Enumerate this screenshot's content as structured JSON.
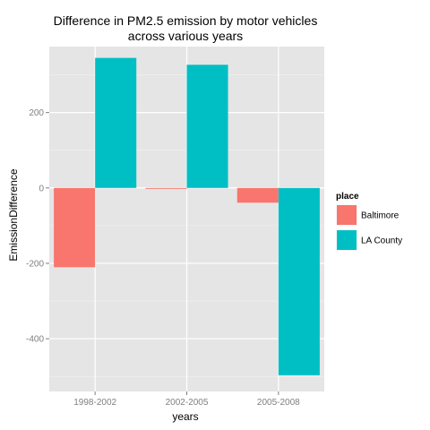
{
  "chart_data": {
    "type": "bar",
    "title_lines": [
      "Difference in PM2.5 emission by motor vehicles",
      "across various years"
    ],
    "xlabel": "years",
    "ylabel": "EmissionDifference",
    "categories": [
      "1998-2002",
      "2002-2005",
      "2005-2008"
    ],
    "series": [
      {
        "name": "Baltimore",
        "color": "#F8766D",
        "values": [
          -210.3,
          -2,
          -39.1
        ]
      },
      {
        "name": "LA County",
        "color": "#00BFC4",
        "values": [
          344.9,
          326.7,
          -496.9
        ]
      }
    ],
    "ylim": [
      -540,
      375
    ],
    "yticks": [
      -400,
      -200,
      0,
      200
    ],
    "grid": true,
    "legend": {
      "title": "place",
      "placement": "right"
    }
  }
}
